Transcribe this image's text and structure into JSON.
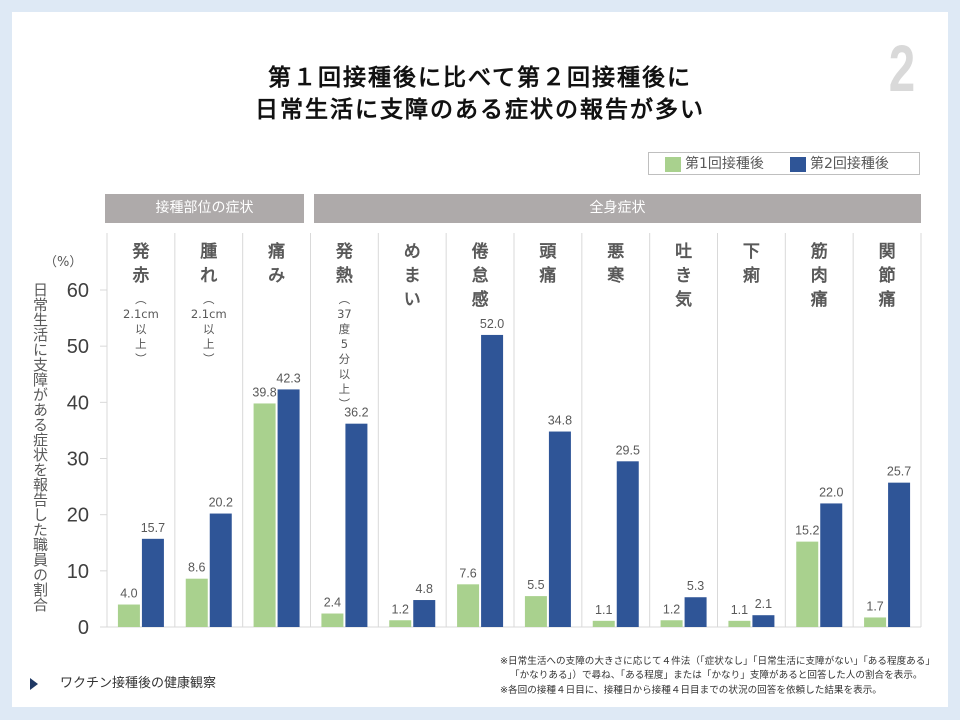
{
  "page": {
    "title": {
      "line1": "第１回接種後に比べて第２回接種後に",
      "line2": "日常生活に支障のある症状の報告が多い"
    },
    "page_number": "2",
    "nav": {
      "icon": "triangle-right-icon",
      "label": "ワクチン接種後の健康観察"
    },
    "footnotes": [
      "※日常生活への支障の大きさに応じて４件法（「症状なし」「日常生活に支障がない」「ある程度ある」",
      "「かなりある」）で尋ね、「ある程度」または「かなり」支障があると回答した人の割合を表示。",
      "※各回の接種４日目に、接種日から接種４日目までの状況の回答を依頼した結果を表示。"
    ],
    "colors": {
      "background": "#dee9f5",
      "dose1": "#a9d18e",
      "dose2": "#2f5597",
      "group_header": "#aeaaaa"
    }
  },
  "chart_data": {
    "type": "bar",
    "title": "第１回接種後に比べて第２回接種後に日常生活に支障のある症状の報告が多い",
    "xlabel": "",
    "ylabel": "日常生活に支障がある症状を報告した職員の割合",
    "yunit": "（%）",
    "ylim": [
      0,
      60
    ],
    "yticks": [
      0,
      10,
      20,
      30,
      40,
      50,
      60
    ],
    "grid": false,
    "legend": "top-right",
    "groups": [
      {
        "label": "接種部位の症状",
        "categories": [
          "発赤",
          "腫れ",
          "痛み"
        ]
      },
      {
        "label": "全身症状",
        "categories": [
          "発熱",
          "めまい",
          "倦怠感",
          "頭痛",
          "悪寒",
          "吐き気",
          "下痢",
          "筋肉痛",
          "関節痛"
        ]
      }
    ],
    "categories": [
      {
        "name": "発赤",
        "note": "（2.1cm以上）"
      },
      {
        "name": "腫れ",
        "note": "（2.1cm以上）"
      },
      {
        "name": "痛み",
        "note": ""
      },
      {
        "name": "発熱",
        "note": "（37度5分以上）"
      },
      {
        "name": "めまい",
        "note": ""
      },
      {
        "name": "倦怠感",
        "note": ""
      },
      {
        "name": "頭痛",
        "note": ""
      },
      {
        "name": "悪寒",
        "note": ""
      },
      {
        "name": "吐き気",
        "note": ""
      },
      {
        "name": "下痢",
        "note": ""
      },
      {
        "name": "筋肉痛",
        "note": ""
      },
      {
        "name": "関節痛",
        "note": ""
      }
    ],
    "series": [
      {
        "name": "第1回接種後",
        "color": "#a9d18e",
        "values": [
          4.0,
          8.6,
          39.8,
          2.4,
          1.2,
          7.6,
          5.5,
          1.1,
          1.2,
          1.1,
          15.2,
          1.7
        ]
      },
      {
        "name": "第2回接種後",
        "color": "#2f5597",
        "values": [
          15.7,
          20.2,
          42.3,
          36.2,
          4.8,
          52.0,
          34.8,
          29.5,
          5.3,
          2.1,
          22.0,
          25.7
        ]
      }
    ]
  }
}
